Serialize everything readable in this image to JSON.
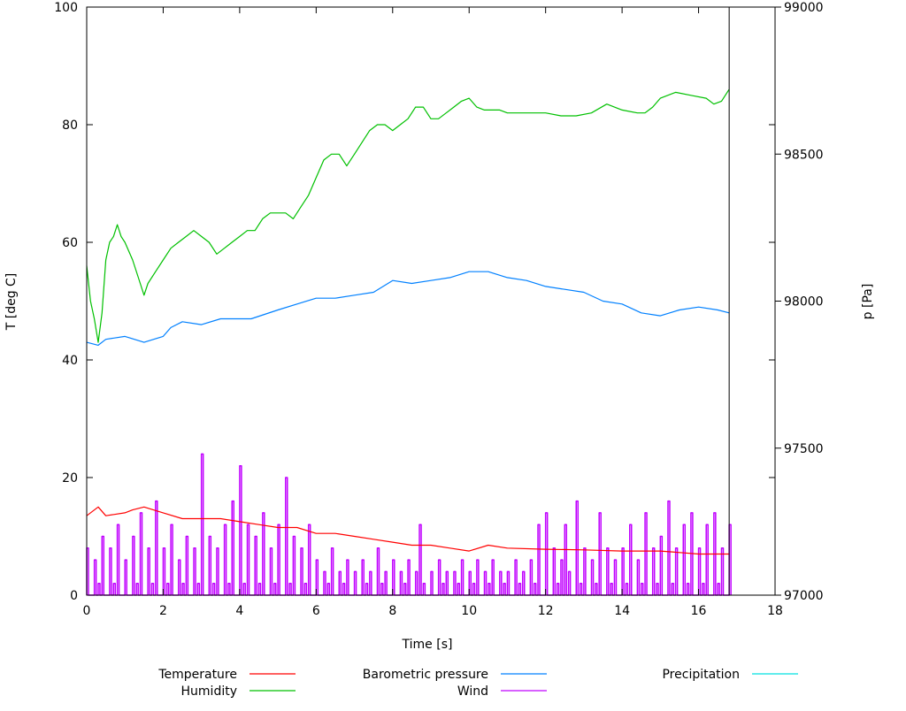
{
  "chart_data": {
    "type": "line",
    "xlabel": "Time [s]",
    "ylabel": "T [deg C]",
    "y2label": "p [Pa]",
    "xlim": [
      0,
      18
    ],
    "ylim": [
      0,
      100
    ],
    "y2lim": [
      97000,
      99000
    ],
    "xticks": [
      0,
      2,
      4,
      6,
      8,
      10,
      12,
      14,
      16,
      18
    ],
    "yticks": [
      0,
      20,
      40,
      60,
      80,
      100
    ],
    "y2ticks": [
      97000,
      97500,
      98000,
      98500,
      99000
    ],
    "grid": false,
    "legend_position": "bottom",
    "marker_line_x": 16.8,
    "series": [
      {
        "name": "Temperature",
        "axis": "y",
        "color": "#ff0000",
        "x": [
          0,
          0.3,
          0.5,
          1,
          1.2,
          1.5,
          2,
          2.5,
          3,
          3.5,
          4,
          4.5,
          5,
          5.5,
          6,
          6.5,
          7,
          7.5,
          8,
          8.5,
          9,
          9.5,
          10,
          10.5,
          11,
          12,
          13,
          14,
          15,
          16,
          16.8
        ],
        "values": [
          13.5,
          15,
          13.5,
          14,
          14.5,
          15,
          14,
          13,
          13,
          13,
          12.5,
          12,
          11.5,
          11.5,
          10.5,
          10.5,
          10,
          9.5,
          9,
          8.5,
          8.5,
          8,
          7.5,
          8.5,
          8,
          7.8,
          7.7,
          7.5,
          7.5,
          7,
          7
        ]
      },
      {
        "name": "Humidity",
        "axis": "y",
        "color": "#00c000",
        "x": [
          0,
          0.1,
          0.2,
          0.3,
          0.4,
          0.5,
          0.6,
          0.7,
          0.8,
          0.9,
          1.0,
          1.2,
          1.4,
          1.5,
          1.6,
          1.8,
          2.0,
          2.2,
          2.4,
          2.6,
          2.8,
          3.0,
          3.2,
          3.4,
          3.6,
          3.8,
          4.0,
          4.2,
          4.4,
          4.6,
          4.8,
          5.0,
          5.2,
          5.4,
          5.6,
          5.8,
          6.0,
          6.2,
          6.4,
          6.6,
          6.8,
          7.0,
          7.2,
          7.4,
          7.6,
          7.8,
          8.0,
          8.2,
          8.4,
          8.6,
          8.8,
          9.0,
          9.2,
          9.4,
          9.6,
          9.8,
          10.0,
          10.2,
          10.4,
          10.8,
          11.0,
          11.4,
          12.0,
          12.4,
          12.8,
          13.2,
          13.6,
          14.0,
          14.4,
          14.6,
          14.8,
          15.0,
          15.4,
          15.8,
          16.2,
          16.4,
          16.6,
          16.8
        ],
        "values": [
          56,
          50,
          47,
          43,
          48,
          57,
          60,
          61,
          63,
          61,
          60,
          57,
          53,
          51,
          53,
          55,
          57,
          59,
          60,
          61,
          62,
          61,
          60,
          58,
          59,
          60,
          61,
          62,
          62,
          64,
          65,
          65,
          65,
          64,
          66,
          68,
          71,
          74,
          75,
          75,
          73,
          75,
          77,
          79,
          80,
          80,
          79,
          80,
          81,
          83,
          83,
          81,
          81,
          82,
          83,
          84,
          84.5,
          83,
          82.5,
          82.5,
          82,
          82,
          82,
          81.5,
          81.5,
          82,
          83.5,
          82.5,
          82,
          82,
          83,
          84.5,
          85.5,
          85,
          84.5,
          83.5,
          84,
          86
        ]
      },
      {
        "name": "Barometric pressure",
        "axis": "y2",
        "color": "#0080ff",
        "x": [
          0,
          0.3,
          0.5,
          1,
          1.5,
          2,
          2.2,
          2.5,
          3,
          3.5,
          4,
          4.3,
          5,
          5.5,
          6,
          6.5,
          7,
          7.5,
          8,
          8.5,
          9,
          9.5,
          10,
          10.5,
          11,
          11.5,
          12,
          12.5,
          13,
          13.5,
          14,
          14.5,
          15,
          15.5,
          16,
          16.5,
          16.8
        ],
        "values": [
          97860,
          97850,
          97870,
          97880,
          97860,
          97880,
          97910,
          97930,
          97920,
          97940,
          97940,
          97940,
          97970,
          97990,
          98010,
          98010,
          98020,
          98030,
          98070,
          98060,
          98070,
          98080,
          98100,
          98100,
          98080,
          98070,
          98050,
          98040,
          98030,
          98000,
          97990,
          97960,
          97950,
          97970,
          97980,
          97970,
          97960
        ]
      },
      {
        "name": "Wind",
        "axis": "y",
        "color": "#c000ff",
        "x_start": 0,
        "x_step": 0.1,
        "values": [
          8,
          0,
          6,
          2,
          10,
          0,
          8,
          2,
          12,
          0,
          6,
          0,
          10,
          2,
          14,
          0,
          8,
          2,
          16,
          0,
          8,
          2,
          12,
          0,
          6,
          2,
          10,
          0,
          8,
          2,
          24,
          0,
          10,
          2,
          8,
          0,
          12,
          2,
          16,
          0,
          22,
          2,
          12,
          0,
          10,
          2,
          14,
          0,
          8,
          2,
          12,
          0,
          20,
          2,
          10,
          0,
          8,
          2,
          12,
          0,
          6,
          0,
          4,
          2,
          8,
          0,
          4,
          2,
          6,
          0,
          4,
          0,
          6,
          2,
          4,
          0,
          8,
          2,
          4,
          0,
          6,
          0,
          4,
          2,
          6,
          0,
          4,
          12,
          2,
          0,
          4,
          0,
          6,
          2,
          4,
          0,
          4,
          2,
          6,
          0,
          4,
          2,
          6,
          0,
          4,
          2,
          6,
          0,
          4,
          2,
          4,
          0,
          6,
          2,
          4,
          0,
          6,
          2,
          12,
          0,
          14,
          0,
          8,
          2,
          6,
          12,
          4,
          0,
          16,
          2,
          8,
          0,
          6,
          2,
          14,
          0,
          8,
          2,
          6,
          0,
          8,
          2,
          12,
          0,
          6,
          2,
          14,
          0,
          8,
          2,
          10,
          0,
          16,
          2,
          8,
          0,
          12,
          2,
          14,
          0,
          8,
          2,
          12,
          0,
          14,
          2,
          8,
          0,
          12
        ]
      },
      {
        "name": "Precipitation",
        "axis": "y",
        "color": "#00e0e0",
        "x": [],
        "values": []
      }
    ]
  }
}
